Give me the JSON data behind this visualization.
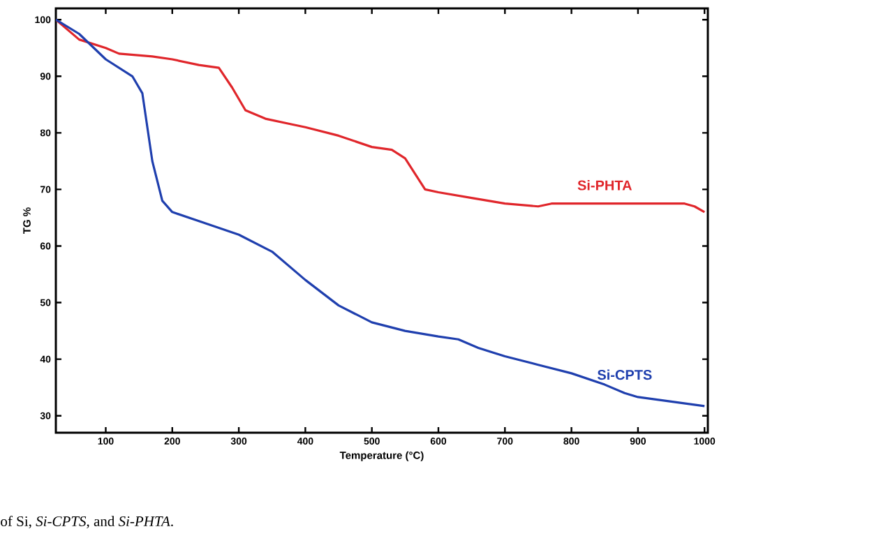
{
  "chart_data": {
    "type": "line",
    "xlabel": "Temperature (°C)",
    "ylabel": "TG %",
    "xlim": [
      25,
      1005
    ],
    "ylim": [
      27,
      102
    ],
    "xticks": [
      100,
      200,
      300,
      400,
      500,
      600,
      700,
      800,
      900,
      1000
    ],
    "yticks": [
      30,
      40,
      50,
      60,
      70,
      80,
      90,
      100
    ],
    "legend": false,
    "grid": false,
    "marker": "none",
    "line_style": "solid",
    "annotations": [
      "of Si, *Si-CPTS*, and *Si-PHTA*."
    ],
    "series": [
      {
        "name": "Si-PHTA",
        "color": "#e0262b",
        "x": [
          25,
          60,
          100,
          120,
          170,
          200,
          240,
          270,
          290,
          310,
          340,
          380,
          400,
          450,
          500,
          530,
          550,
          580,
          600,
          650,
          700,
          750,
          770,
          850,
          970,
          985,
          1000
        ],
        "values": [
          100,
          96.5,
          95,
          94,
          93.5,
          93,
          92,
          91.5,
          88,
          84,
          82.5,
          81.5,
          81,
          79.5,
          77.5,
          77,
          75.5,
          70,
          69.5,
          68.5,
          67.5,
          67,
          67.5,
          67.5,
          67.5,
          67,
          66
        ]
      },
      {
        "name": "Si-CPTS",
        "color": "#1f3fae",
        "x": [
          25,
          60,
          100,
          140,
          155,
          170,
          185,
          200,
          250,
          300,
          350,
          400,
          450,
          500,
          550,
          600,
          630,
          660,
          700,
          750,
          800,
          850,
          880,
          900,
          950,
          1000
        ],
        "values": [
          100,
          97.5,
          93,
          90,
          87,
          75,
          68,
          66,
          64,
          62,
          59,
          54,
          49.5,
          46.5,
          45,
          44,
          43.5,
          42,
          40.5,
          39,
          37.5,
          35.5,
          34,
          33.3,
          32.5,
          31.7
        ]
      }
    ]
  }
}
